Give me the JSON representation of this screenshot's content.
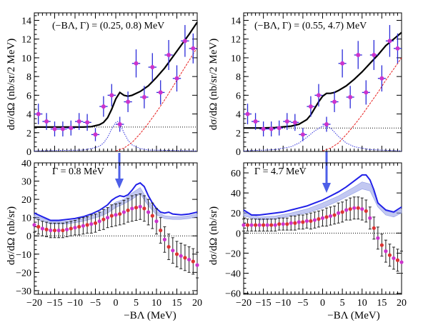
{
  "chart_data": [
    {
      "type": "scatter",
      "annotation": "(−BΛ, Γ) = (0.25, 0.8) MeV",
      "ylabel": "dσ/dΩ (nb/sr/2 MeV)",
      "xlim": [
        -20,
        20
      ],
      "ylim": [
        0,
        14.8
      ],
      "yticks": [
        0,
        2,
        4,
        6,
        8,
        10,
        12,
        14
      ],
      "ytick_labels": [
        "0",
        "2",
        "4",
        "6",
        "8",
        "10",
        "12",
        "14"
      ],
      "grid": false,
      "data": {
        "x": [
          -19,
          -17,
          -15,
          -13,
          -11,
          -9,
          -7,
          -5,
          -3,
          -1,
          1,
          3,
          5,
          7,
          9,
          11,
          13,
          15,
          17,
          19
        ],
        "y": [
          4.0,
          3.2,
          2.4,
          2.4,
          2.5,
          3.2,
          3.1,
          1.8,
          4.8,
          6.0,
          2.9,
          5.3,
          9.4,
          5.8,
          9.0,
          6.3,
          10.3,
          7.8,
          11.8,
          11.0
        ],
        "yerr": [
          1.1,
          0.9,
          0.8,
          0.8,
          0.8,
          0.9,
          0.9,
          0.7,
          1.1,
          1.2,
          0.8,
          1.1,
          1.5,
          1.2,
          1.5,
          1.3,
          1.6,
          1.4,
          1.7,
          1.6
        ]
      },
      "curves": {
        "total_x": [
          -20,
          -16,
          -12,
          -8,
          -6,
          -4,
          -3,
          -2,
          -1,
          0,
          1,
          2,
          3,
          4,
          6,
          8,
          10,
          12,
          14,
          16,
          18,
          20
        ],
        "total_y": [
          2.6,
          2.6,
          2.6,
          2.6,
          2.65,
          2.85,
          3.1,
          3.6,
          4.5,
          5.6,
          6.3,
          6.0,
          5.9,
          6.0,
          6.4,
          7.0,
          7.9,
          8.9,
          10.1,
          11.3,
          12.5,
          13.8
        ],
        "background_x": [
          0,
          2,
          4,
          6,
          8,
          10,
          12,
          14,
          16,
          18,
          20
        ],
        "background_y": [
          0.05,
          0.35,
          0.95,
          1.9,
          3.0,
          4.2,
          5.5,
          6.9,
          8.3,
          9.7,
          11.1
        ],
        "peak_x": [
          -20,
          -8,
          -6,
          -4,
          -3,
          -2,
          -1,
          0,
          0.5,
          1,
          2,
          3,
          4,
          6,
          8,
          20
        ],
        "peak_y": [
          0.05,
          0.15,
          0.3,
          0.55,
          0.9,
          1.5,
          2.4,
          3.1,
          3.2,
          3.0,
          2.0,
          1.2,
          0.7,
          0.3,
          0.15,
          0.05
        ],
        "flat_level": 2.6
      }
    },
    {
      "type": "scatter",
      "annotation": "(−BΛ, Γ) = (0.55, 4.7) MeV",
      "ylabel": "dσ/dΩ (nb/sr/2 MeV)",
      "xlim": [
        -20,
        20
      ],
      "ylim": [
        0,
        14.8
      ],
      "yticks": [
        0,
        2,
        4,
        6,
        8,
        10,
        12,
        14
      ],
      "ytick_labels": [
        "0",
        "2",
        "4",
        "6",
        "8",
        "10",
        "12",
        "14"
      ],
      "grid": false,
      "data": {
        "x": [
          -19,
          -17,
          -15,
          -13,
          -11,
          -9,
          -7,
          -5,
          -3,
          -1,
          1,
          3,
          5,
          7,
          9,
          11,
          13,
          15,
          17,
          19
        ],
        "y": [
          4.0,
          3.2,
          2.4,
          2.4,
          2.5,
          3.2,
          3.1,
          1.8,
          4.8,
          6.0,
          2.9,
          5.3,
          9.4,
          5.8,
          10.3,
          6.3,
          10.3,
          7.8,
          11.8,
          11.0
        ],
        "yerr": [
          1.1,
          0.9,
          0.8,
          0.8,
          0.8,
          0.9,
          0.9,
          0.7,
          1.1,
          1.2,
          0.8,
          1.1,
          1.5,
          1.2,
          1.5,
          1.3,
          1.6,
          1.4,
          1.7,
          1.6
        ]
      },
      "curves": {
        "total_x": [
          -20,
          -16,
          -12,
          -8,
          -6,
          -4,
          -3,
          -2,
          -1,
          0,
          1,
          2,
          3,
          4,
          6,
          8,
          10,
          12,
          14,
          16,
          18,
          20
        ],
        "total_y": [
          2.5,
          2.5,
          2.55,
          2.7,
          2.9,
          3.4,
          3.9,
          4.6,
          5.3,
          5.9,
          6.2,
          6.2,
          6.3,
          6.5,
          7.0,
          7.7,
          8.5,
          9.4,
          10.3,
          11.3,
          12.0,
          12.7
        ],
        "background_x": [
          0,
          2,
          4,
          6,
          8,
          10,
          12,
          14,
          16,
          18,
          20
        ],
        "background_y": [
          0.05,
          0.35,
          0.9,
          1.8,
          2.8,
          3.9,
          5.1,
          6.3,
          7.6,
          8.8,
          10.0
        ],
        "peak_x": [
          -20,
          -12,
          -8,
          -6,
          -4,
          -2,
          0,
          1,
          2,
          4,
          6,
          8,
          12,
          20
        ],
        "peak_y": [
          0.05,
          0.2,
          0.5,
          0.9,
          1.5,
          2.2,
          2.7,
          2.7,
          2.5,
          1.6,
          0.9,
          0.5,
          0.2,
          0.05
        ],
        "flat_level": 2.5
      }
    },
    {
      "type": "scatter",
      "annotation": "Γ = 0.8 MeV",
      "ylabel": "dσ/dΩ (nb/sr)",
      "xlabel": "−BΛ (MeV)",
      "xlim": [
        -20,
        20
      ],
      "ylim": [
        -32,
        40
      ],
      "yticks": [
        -30,
        -20,
        -10,
        0,
        10,
        20,
        30,
        40
      ],
      "ytick_labels": [
        "−30",
        "−20",
        "−10",
        "0",
        "10",
        "20",
        "30",
        "40"
      ],
      "xticks": [
        -20,
        -15,
        -10,
        -5,
        0,
        5,
        10,
        15,
        20
      ],
      "xtick_labels": [
        "−20",
        "−15",
        "−10",
        "−5",
        "0",
        "5",
        "10",
        "15",
        "20"
      ],
      "grid": false,
      "data": {
        "x": [
          -20,
          -19,
          -18,
          -17,
          -16,
          -15,
          -14,
          -13,
          -12,
          -11,
          -10,
          -9,
          -8,
          -7,
          -6,
          -5,
          -4,
          -3,
          -2,
          -1,
          0,
          1,
          2,
          3,
          4,
          5,
          6,
          7,
          8,
          9,
          10,
          11,
          12,
          13,
          14,
          15,
          16,
          17,
          18,
          19,
          20
        ],
        "y": [
          6,
          5,
          4,
          3.5,
          3,
          3,
          3,
          3,
          3.5,
          4,
          4.5,
          5,
          5.5,
          6,
          6.5,
          7,
          8,
          9,
          10,
          11,
          11.5,
          12,
          13,
          14,
          15,
          15.5,
          16,
          15,
          13,
          11,
          8,
          3,
          -2,
          -6,
          -8,
          -10,
          -11,
          -12,
          -13,
          -14,
          -16
        ],
        "yerr": [
          4,
          4,
          4,
          4,
          4,
          4,
          4,
          4,
          4,
          4,
          4,
          4.5,
          4.5,
          4.5,
          5,
          5,
          5,
          5.5,
          5.5,
          6,
          6,
          6,
          6.5,
          6.5,
          7,
          7,
          7,
          7,
          7,
          7,
          7,
          7,
          7,
          7,
          7,
          7,
          7,
          7,
          7,
          7,
          7
        ]
      },
      "curves": {
        "upper_x": [
          -20,
          -18,
          -16,
          -14,
          -12,
          -10,
          -8,
          -6,
          -4,
          -2,
          -1,
          0,
          1,
          2,
          3,
          4,
          5,
          6,
          7,
          8,
          9,
          10,
          11,
          12,
          13,
          14,
          16,
          18,
          20
        ],
        "upper_y": [
          12.5,
          10.5,
          8.5,
          8.5,
          9.0,
          9.5,
          10.5,
          12.0,
          14.0,
          17.0,
          19.5,
          21.0,
          22.0,
          21.5,
          22.5,
          25.0,
          28.0,
          29.0,
          27.0,
          22.0,
          18.0,
          15.0,
          13.0,
          12.5,
          13.0,
          12.0,
          11.5,
          12.0,
          13.0
        ],
        "band_x": [
          -20,
          -16,
          -12,
          -8,
          -4,
          -2,
          0,
          2,
          4,
          6,
          8,
          10,
          12,
          14,
          16,
          18,
          20
        ],
        "band_upper": [
          11.5,
          8.0,
          8.0,
          9.5,
          12.5,
          15.0,
          18.5,
          20.0,
          23.5,
          26.5,
          19.0,
          13.5,
          11.0,
          10.5,
          10.5,
          11.0,
          12.0
        ],
        "band_lower": [
          9.5,
          6.5,
          6.5,
          8.0,
          10.5,
          12.5,
          15.5,
          17.5,
          20.0,
          23.0,
          16.5,
          11.5,
          9.5,
          9.0,
          9.0,
          9.5,
          10.5
        ]
      }
    },
    {
      "type": "scatter",
      "annotation": "Γ = 4.7 MeV",
      "ylabel": "dσ/dΩ (nb/sr)",
      "xlabel": "−BΛ (MeV)",
      "xlim": [
        -20,
        20
      ],
      "ylim": [
        -61,
        70
      ],
      "yticks": [
        -60,
        -40,
        -20,
        0,
        20,
        40,
        60
      ],
      "ytick_labels": [
        "−60",
        "−40",
        "−20",
        "0",
        "20",
        "40",
        "60"
      ],
      "xticks": [
        -20,
        -15,
        -10,
        -5,
        0,
        5,
        10,
        15,
        20
      ],
      "xtick_labels": [
        "−20",
        "−15",
        "−10",
        "−5",
        "0",
        "5",
        "10",
        "15",
        "20"
      ],
      "grid": false,
      "data": {
        "x": [
          -20,
          -19,
          -18,
          -17,
          -16,
          -15,
          -14,
          -13,
          -12,
          -11,
          -10,
          -9,
          -8,
          -7,
          -6,
          -5,
          -4,
          -3,
          -2,
          -1,
          0,
          1,
          2,
          3,
          4,
          5,
          6,
          7,
          8,
          9,
          10,
          11,
          12,
          13,
          14,
          15,
          16,
          17,
          18,
          19,
          20
        ],
        "y": [
          8,
          8,
          8,
          8,
          8,
          8,
          8,
          8,
          8,
          9,
          9,
          9,
          10,
          10,
          11,
          11,
          12,
          12,
          13,
          14,
          15,
          16,
          17,
          18,
          20,
          21,
          23,
          24,
          25,
          25,
          24,
          22,
          15,
          5,
          -5,
          -12,
          -18,
          -22,
          -25,
          -27,
          -29
        ],
        "yerr": [
          6,
          6,
          6,
          6,
          6,
          6,
          6,
          6,
          6,
          6,
          6,
          6,
          7,
          7,
          7,
          7,
          7,
          8,
          8,
          8,
          8,
          9,
          9,
          9,
          10,
          10,
          10,
          11,
          11,
          11,
          11,
          11,
          11,
          11,
          11,
          11,
          11,
          11,
          11,
          11,
          11
        ]
      },
      "curves": {
        "upper_x": [
          -20,
          -18,
          -16,
          -14,
          -12,
          -10,
          -8,
          -6,
          -4,
          -2,
          0,
          2,
          4,
          6,
          8,
          10,
          11,
          12,
          13,
          14,
          16,
          18,
          20
        ],
        "upper_y": [
          23,
          18,
          18,
          19,
          20,
          21,
          23,
          25,
          27,
          30,
          33,
          37,
          41,
          46,
          52,
          58,
          58,
          53,
          43,
          30,
          23,
          21,
          26
        ],
        "band_x": [
          -20,
          -16,
          -12,
          -8,
          -4,
          0,
          4,
          8,
          10,
          12,
          14,
          16,
          18,
          20
        ],
        "band_upper": [
          21,
          16,
          17,
          20,
          24,
          30,
          37,
          46,
          51,
          49,
          31,
          22,
          20,
          24
        ],
        "band_lower": [
          17,
          13,
          14,
          17,
          20,
          25,
          32,
          40,
          44,
          42,
          26,
          18,
          16,
          20
        ]
      }
    }
  ]
}
